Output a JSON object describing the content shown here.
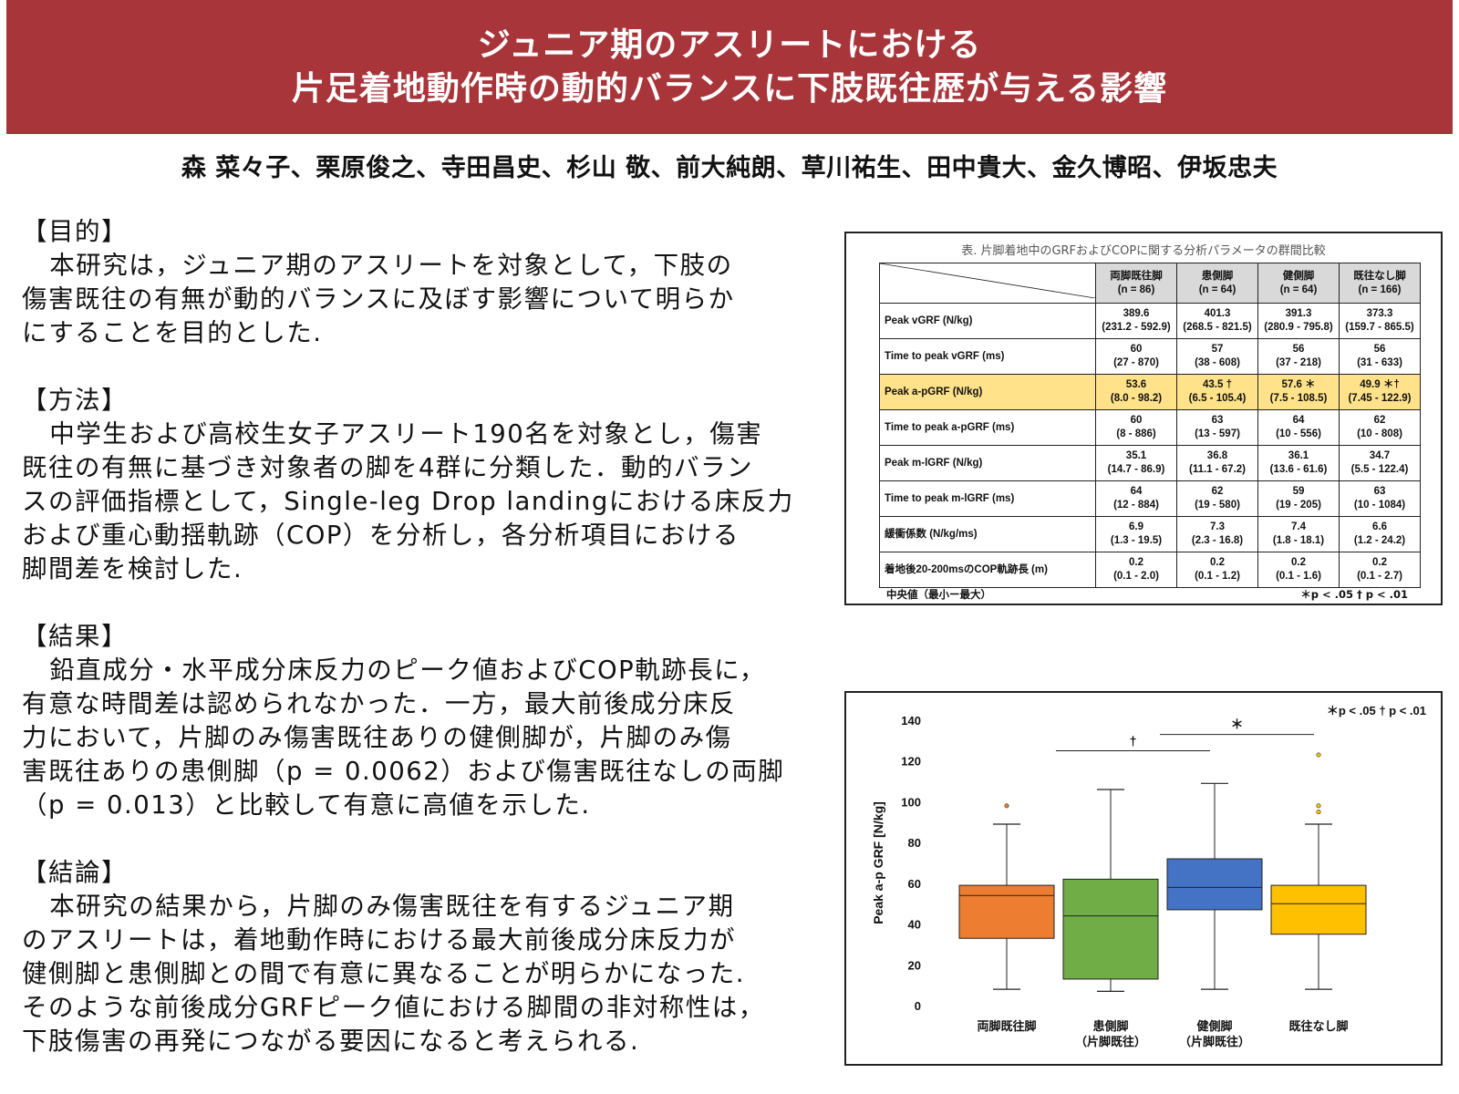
{
  "header": {
    "title_line1": "ジュニア期のアスリートにおける",
    "title_line2": "片足着地動作時の動的バランスに下肢既往歴が与える影響"
  },
  "authors": "森 菜々子、栗原俊之、寺田昌史、杉山 敬、前大純朗、草川祐生、田中貴大、金久博昭、伊坂忠夫",
  "sections": {
    "purpose": {
      "heading": "【目的】",
      "lines": [
        "本研究は，ジュニア期のアスリートを対象として，下肢の",
        "傷害既往の有無が動的バランスに及ぼす影響について明らか",
        "にすることを目的とした."
      ]
    },
    "method": {
      "heading": "【方法】",
      "lines": [
        "中学生および高校生女子アスリート190名を対象とし，傷害",
        "既往の有無に基づき対象者の脚を4群に分類した．動的バラン",
        "スの評価指標として，Single-leg Drop landingにおける床反力",
        "および重心動揺軌跡（COP）を分析し，各分析項目における",
        "脚間差を検討した."
      ]
    },
    "result": {
      "heading": "【結果】",
      "lines": [
        "鉛直成分・水平成分床反力のピーク値およびCOP軌跡長に，",
        "有意な時間差は認められなかった．一方，最大前後成分床反",
        "力において，片脚のみ傷害既往ありの健側脚が，片脚のみ傷",
        "害既往ありの患側脚（p = 0.0062）および傷害既往なしの両脚",
        "（p = 0.013）と比較して有意に高値を示した."
      ]
    },
    "conclusion": {
      "heading": "【結論】",
      "lines": [
        "本研究の結果から，片脚のみ傷害既往を有するジュニア期",
        "のアスリートは，着地動作時における最大前後成分床反力が",
        "健側脚と患側脚との間で有意に異なることが明らかになった.",
        "そのような前後成分GRFピーク値における脚間の非対称性は，",
        "下肢傷害の再発につながる要因になると考えられる."
      ]
    }
  },
  "table": {
    "caption": "表. 片脚着地中のGRFおよびCOPに関する分析パラメータの群間比較",
    "columns": [
      {
        "name": "両脚既往脚",
        "n": "(n = 86)"
      },
      {
        "name": "患側脚",
        "n": "(n = 64)"
      },
      {
        "name": "健側脚",
        "n": "(n = 64)"
      },
      {
        "name": "既往なし脚",
        "n": "(n = 166)"
      }
    ],
    "rows": [
      {
        "label": "Peak vGRF (N/kg)",
        "highlight": false,
        "cells": [
          [
            "389.6",
            "(231.2 - 592.9)"
          ],
          [
            "401.3",
            "(268.5 - 821.5)"
          ],
          [
            "391.3",
            "(280.9 - 795.8)"
          ],
          [
            "373.3",
            "(159.7 - 865.5)"
          ]
        ]
      },
      {
        "label": "Time to peak vGRF (ms)",
        "highlight": false,
        "cells": [
          [
            "60",
            "(27 - 870)"
          ],
          [
            "57",
            "(38 - 608)"
          ],
          [
            "56",
            "(37 - 218)"
          ],
          [
            "56",
            "(31 - 633)"
          ]
        ]
      },
      {
        "label": "Peak a-pGRF (N/kg)",
        "highlight": true,
        "cells": [
          [
            "53.6",
            "(8.0 - 98.2)"
          ],
          [
            "43.5 †",
            "(6.5 - 105.4)"
          ],
          [
            "57.6 ＊",
            "(7.5 - 108.5)"
          ],
          [
            "49.9 ＊†",
            "(7.45 - 122.9)"
          ]
        ]
      },
      {
        "label": "Time to peak a-pGRF (ms)",
        "highlight": false,
        "cells": [
          [
            "60",
            "(8 - 886)"
          ],
          [
            "63",
            "(13 - 597)"
          ],
          [
            "64",
            "(10 - 556)"
          ],
          [
            "62",
            "(10 - 808)"
          ]
        ]
      },
      {
        "label": "Peak m-lGRF (N/kg)",
        "highlight": false,
        "cells": [
          [
            "35.1",
            "(14.7 - 86.9)"
          ],
          [
            "36.8",
            "(11.1 - 67.2)"
          ],
          [
            "36.1",
            "(13.6 - 61.6)"
          ],
          [
            "34.7",
            "(5.5 - 122.4)"
          ]
        ]
      },
      {
        "label": "Time to peak m-lGRF (ms)",
        "highlight": false,
        "cells": [
          [
            "64",
            "(12 - 884)"
          ],
          [
            "62",
            "(19 - 580)"
          ],
          [
            "59",
            "(19 - 205)"
          ],
          [
            "63",
            "(10 - 1084)"
          ]
        ]
      },
      {
        "label": "緩衝係数 (N/kg/ms)",
        "highlight": false,
        "cells": [
          [
            "6.9",
            "(1.3 - 19.5)"
          ],
          [
            "7.3",
            "(2.3 - 16.8)"
          ],
          [
            "7.4",
            "(1.8 - 18.1)"
          ],
          [
            "6.6",
            "(1.2 - 24.2)"
          ]
        ]
      },
      {
        "label": "着地後20-200msのCOP軌跡長 (m)",
        "highlight": false,
        "cells": [
          [
            "0.2",
            "(0.1 - 2.0)"
          ],
          [
            "0.2",
            "(0.1 - 1.2)"
          ],
          [
            "0.2",
            "(0.1 - 1.6)"
          ],
          [
            "0.2",
            "(0.1 - 2.7)"
          ]
        ]
      }
    ],
    "footnote_left": "中央値（最小ー最大）",
    "footnote_right": "＊p < .05  † p < .01"
  },
  "chart_data": {
    "type": "box",
    "ylabel": "Peak a-p GRF [N/kg]",
    "ylim": [
      0,
      140
    ],
    "yticks": [
      0,
      20,
      40,
      60,
      80,
      100,
      120,
      140
    ],
    "legend_note": "＊p < .05  † p < .01",
    "categories": [
      {
        "line1": "両脚既往脚",
        "line2": ""
      },
      {
        "line1": "患側脚",
        "line2": "（片脚既往）"
      },
      {
        "line1": "健側脚",
        "line2": "（片脚既往）"
      },
      {
        "line1": "既往なし脚",
        "line2": ""
      }
    ],
    "colors": [
      "#ed7d31",
      "#70ad47",
      "#4472c4",
      "#ffc000"
    ],
    "boxes": [
      {
        "min": 8,
        "q1": 33,
        "median": 54,
        "q3": 59,
        "max": 89,
        "outliers": [
          98
        ]
      },
      {
        "min": 7,
        "q1": 13,
        "median": 44,
        "q3": 62,
        "max": 106,
        "outliers": []
      },
      {
        "min": 8,
        "q1": 47,
        "median": 58,
        "q3": 72,
        "max": 109,
        "outliers": []
      },
      {
        "min": 8,
        "q1": 35,
        "median": 50,
        "q3": 59,
        "max": 89,
        "outliers": [
          95,
          98,
          123
        ]
      }
    ],
    "significance": [
      {
        "from": 1,
        "to": 2,
        "symbol": "†",
        "y": 125
      },
      {
        "from": 2,
        "to": 3,
        "symbol": "＊",
        "y": 133
      }
    ]
  }
}
